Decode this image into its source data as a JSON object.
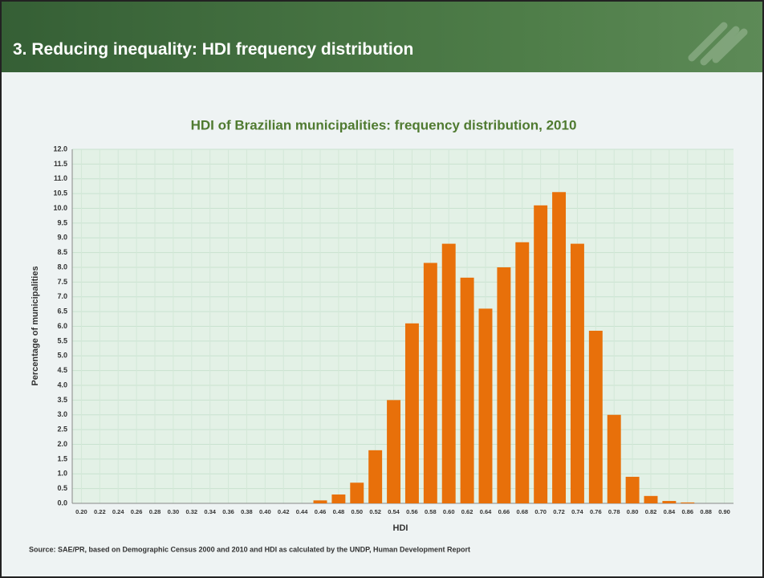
{
  "header": {
    "title": "3. Reducing inequality: HDI frequency distribution"
  },
  "chart_data": {
    "type": "bar",
    "title": "HDI of Brazilian municipalities: frequency distribution, 2010",
    "x_label": "HDI",
    "y_label": "Percentage of municipalities",
    "categories": [
      "0.20",
      "0.22",
      "0.24",
      "0.26",
      "0.28",
      "0.30",
      "0.32",
      "0.34",
      "0.36",
      "0.38",
      "0.40",
      "0.42",
      "0.44",
      "0.46",
      "0.48",
      "0.50",
      "0.52",
      "0.54",
      "0.56",
      "0.58",
      "0.60",
      "0.62",
      "0.64",
      "0.66",
      "0.68",
      "0.70",
      "0.72",
      "0.74",
      "0.76",
      "0.78",
      "0.80",
      "0.82",
      "0.84",
      "0.86",
      "0.88",
      "0.90"
    ],
    "values": [
      0,
      0,
      0,
      0,
      0,
      0,
      0,
      0,
      0,
      0,
      0,
      0,
      0,
      0.1,
      0.3,
      0.7,
      1.8,
      3.5,
      6.1,
      8.15,
      8.8,
      7.65,
      6.6,
      8.0,
      8.85,
      10.1,
      10.55,
      8.8,
      5.85,
      3.0,
      0.9,
      0.25,
      0.08,
      0.03,
      0,
      0
    ],
    "color": "#e8700a",
    "ylim": [
      0,
      12
    ],
    "yticks": [
      {
        "value": 0,
        "label": "0.0"
      },
      0.5,
      {
        "value": 1,
        "label": "1.0"
      },
      1.5,
      {
        "value": 2,
        "label": "2.0"
      },
      2.5,
      {
        "value": 3,
        "label": "3.0"
      },
      3.5,
      {
        "value": 4,
        "label": "4.0"
      },
      4.5,
      {
        "value": 5,
        "label": "5.0"
      },
      5.5,
      {
        "value": 6,
        "label": "6.0"
      },
      6.5,
      {
        "value": 7,
        "label": "7.0"
      },
      7.5,
      {
        "value": 8,
        "label": "8.0"
      },
      8.5,
      {
        "value": 9,
        "label": "9.0"
      },
      9.5,
      {
        "value": 10,
        "label": "10.0"
      },
      10.5,
      {
        "value": 11,
        "label": "11.0"
      },
      11.5,
      {
        "value": 12,
        "label": "12.0"
      }
    ],
    "grid": true,
    "source": "Source: SAE/PR, based on Demographic Census 2000 and 2010 and HDI as calculated  by the UNDP, Human Development Report"
  }
}
